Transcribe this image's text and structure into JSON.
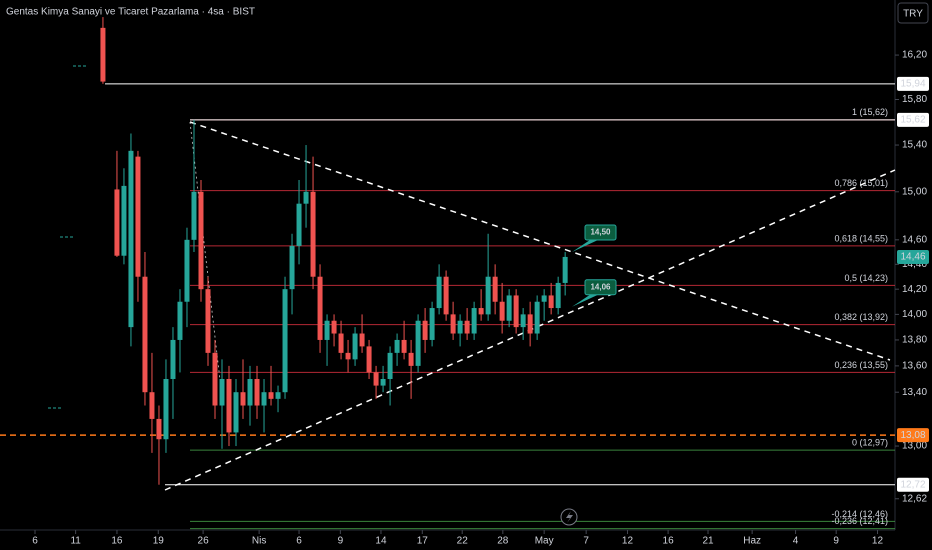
{
  "chart_data": {
    "type": "candlestick",
    "title": "Gentas Kimya Sanayi ve Ticaret Pazarlama · 4sa · BIST",
    "currency_button": "TRY",
    "log_scale": true,
    "up_color": "#26a69a",
    "down_color": "#ef5350",
    "x": [
      0,
      2,
      3,
      4,
      5,
      6,
      7,
      8,
      9,
      10,
      11,
      12,
      13,
      14,
      15,
      16,
      17,
      18,
      19,
      20,
      21,
      22,
      23,
      24,
      25,
      26,
      27,
      28,
      29,
      30,
      31,
      32,
      33,
      34,
      35,
      36,
      37,
      38,
      39,
      40,
      41,
      42,
      43,
      44,
      45,
      46,
      47,
      48,
      49,
      50,
      51,
      52,
      53,
      54,
      55,
      56,
      57,
      58,
      59,
      60,
      61,
      62,
      63,
      64,
      65,
      66
    ],
    "open": [
      16.45,
      15.02,
      14.47,
      13.9,
      15.3,
      14.3,
      13.4,
      13.2,
      13.05,
      13.5,
      13.8,
      14.1,
      14.6,
      15.0,
      14.2,
      13.7,
      13.3,
      13.5,
      13.1,
      13.4,
      13.3,
      13.5,
      13.3,
      13.4,
      13.35,
      13.4,
      14.2,
      14.55,
      14.9,
      15.0,
      14.3,
      13.8,
      13.95,
      13.85,
      13.7,
      13.65,
      13.85,
      13.75,
      13.55,
      13.45,
      13.5,
      13.7,
      13.8,
      13.7,
      13.6,
      13.95,
      13.8,
      14.05,
      14.3,
      14.0,
      13.85,
      13.95,
      13.85,
      14.05,
      14.0,
      14.3,
      14.1,
      13.95,
      14.15,
      13.9,
      14.0,
      13.85,
      14.1,
      14.15,
      14.05,
      14.25
    ],
    "high": [
      16.55,
      15.35,
      15.2,
      15.5,
      15.35,
      14.5,
      13.7,
      13.3,
      13.65,
      13.9,
      14.2,
      14.7,
      15.62,
      15.1,
      14.3,
      13.8,
      13.65,
      13.6,
      13.5,
      13.65,
      13.6,
      13.6,
      13.5,
      13.6,
      13.45,
      14.3,
      14.65,
      15.1,
      15.4,
      15.3,
      14.4,
      14.0,
      14.0,
      13.95,
      13.8,
      13.9,
      14.0,
      13.8,
      13.6,
      13.6,
      13.75,
      13.85,
      13.95,
      13.8,
      14.0,
      14.05,
      14.1,
      14.4,
      14.35,
      14.1,
      14.0,
      14.05,
      14.1,
      14.2,
      14.65,
      14.4,
      14.25,
      14.2,
      14.2,
      14.05,
      14.1,
      14.15,
      14.2,
      14.25,
      14.3,
      14.5
    ],
    "low": [
      15.94,
      14.46,
      14.4,
      13.75,
      14.1,
      13.3,
      12.95,
      12.72,
      12.95,
      13.2,
      13.55,
      13.9,
      14.5,
      14.1,
      13.6,
      13.2,
      12.98,
      13.0,
      13.0,
      13.2,
      13.15,
      13.2,
      13.1,
      13.3,
      13.25,
      13.35,
      14.0,
      14.4,
      14.7,
      14.2,
      13.7,
      13.6,
      13.75,
      13.65,
      13.55,
      13.6,
      13.7,
      13.5,
      13.35,
      13.4,
      13.3,
      13.6,
      13.65,
      13.35,
      13.55,
      13.7,
      13.75,
      14.0,
      13.95,
      13.8,
      13.75,
      13.8,
      13.8,
      13.95,
      13.95,
      14.0,
      13.85,
      13.9,
      13.85,
      13.8,
      13.75,
      13.8,
      13.95,
      14.0,
      14.0,
      14.15
    ],
    "close": [
      15.96,
      14.47,
      15.05,
      15.35,
      14.3,
      13.4,
      13.2,
      13.05,
      13.5,
      13.8,
      14.1,
      14.6,
      15.0,
      14.2,
      13.7,
      13.3,
      13.5,
      13.1,
      13.4,
      13.3,
      13.5,
      13.3,
      13.4,
      13.35,
      13.4,
      14.2,
      14.55,
      14.9,
      15.0,
      14.3,
      13.8,
      13.95,
      13.85,
      13.7,
      13.65,
      13.85,
      13.75,
      13.55,
      13.45,
      13.5,
      13.7,
      13.8,
      13.7,
      13.6,
      13.95,
      13.8,
      14.05,
      14.3,
      14.0,
      13.85,
      13.95,
      13.85,
      14.05,
      14.0,
      14.3,
      14.1,
      13.95,
      14.15,
      13.9,
      14.0,
      13.85,
      14.1,
      14.15,
      14.05,
      14.25,
      14.46
    ],
    "xlim": [
      -14.7,
      113.1
    ],
    "xticks": [
      {
        "value": -9.7,
        "label": "6"
      },
      {
        "value": -3.9,
        "label": "11"
      },
      {
        "value": 2,
        "label": "16"
      },
      {
        "value": 7.9,
        "label": "19"
      },
      {
        "value": 14.3,
        "label": "26"
      },
      {
        "value": 22.3,
        "label": "Nis"
      },
      {
        "value": 28,
        "label": "6"
      },
      {
        "value": 33.9,
        "label": "9"
      },
      {
        "value": 39.7,
        "label": "14"
      },
      {
        "value": 45.6,
        "label": "17"
      },
      {
        "value": 51.3,
        "label": "22"
      },
      {
        "value": 57.1,
        "label": "28"
      },
      {
        "value": 63,
        "label": "May"
      },
      {
        "value": 69,
        "label": "7"
      },
      {
        "value": 74.9,
        "label": "12"
      },
      {
        "value": 80.7,
        "label": "16"
      },
      {
        "value": 86.4,
        "label": "21"
      },
      {
        "value": 92.7,
        "label": "Haz"
      },
      {
        "value": 98.9,
        "label": "4"
      },
      {
        "value": 104.7,
        "label": "9"
      },
      {
        "value": 110.6,
        "label": "12"
      }
    ],
    "ylim": [
      12.4,
      16.71
    ],
    "yticks": [
      {
        "value": 16.2,
        "label": "16,20"
      },
      {
        "value": 15.8,
        "label": "15,80"
      },
      {
        "value": 15.4,
        "label": "15,40"
      },
      {
        "value": 15.0,
        "label": "15,00"
      },
      {
        "value": 14.6,
        "label": "14,60"
      },
      {
        "value": 14.4,
        "label": "14,40"
      },
      {
        "value": 14.2,
        "label": "14,20"
      },
      {
        "value": 14.0,
        "label": "14,00"
      },
      {
        "value": 13.8,
        "label": "13,80"
      },
      {
        "value": 13.6,
        "label": "13,60"
      },
      {
        "value": 13.4,
        "label": "13,40"
      },
      {
        "value": 13.0,
        "label": "13,00"
      },
      {
        "value": 12.62,
        "label": "12,62"
      }
    ],
    "fib_levels": [
      {
        "label": "1 (15,62)",
        "value": 15.62,
        "color": "#f23645"
      },
      {
        "label": "0,786 (15,01)",
        "value": 15.01,
        "color": "#f23645"
      },
      {
        "label": "0,618 (14,55)",
        "value": 14.55,
        "color": "#f23645"
      },
      {
        "label": "0,5 (14,23)",
        "value": 14.23,
        "color": "#f23645"
      },
      {
        "label": "0,382 (13,92)",
        "value": 13.92,
        "color": "#f23645"
      },
      {
        "label": "0,236 (13,55)",
        "value": 13.55,
        "color": "#f23645"
      },
      {
        "label": "0 (12,97)",
        "value": 12.97,
        "color": "#4caf50"
      },
      {
        "label": "-0,214 (12,46)",
        "value": 12.46,
        "color": "#4caf50"
      },
      {
        "label": "-0,236 (12,41)",
        "value": 12.41,
        "color": "#4caf50"
      }
    ],
    "price_lines": [
      {
        "value": 15.94,
        "label": "15,94",
        "color": "#ffffff",
        "dashed": false
      },
      {
        "value": 15.62,
        "label": "15,62",
        "color": "#ffffff",
        "dashed": false
      },
      {
        "value": 13.08,
        "label": "13,08",
        "color": "#ff7a1a",
        "dashed": true
      },
      {
        "value": 12.72,
        "label": "12,72",
        "color": "#ffffff",
        "dashed": false
      }
    ],
    "last_price": {
      "value": 14.46,
      "label": "14,46",
      "color": "#26a69a"
    },
    "callouts": [
      {
        "value": 14.5,
        "label": "14,50"
      },
      {
        "value": 14.06,
        "label": "14,06"
      }
    ]
  }
}
